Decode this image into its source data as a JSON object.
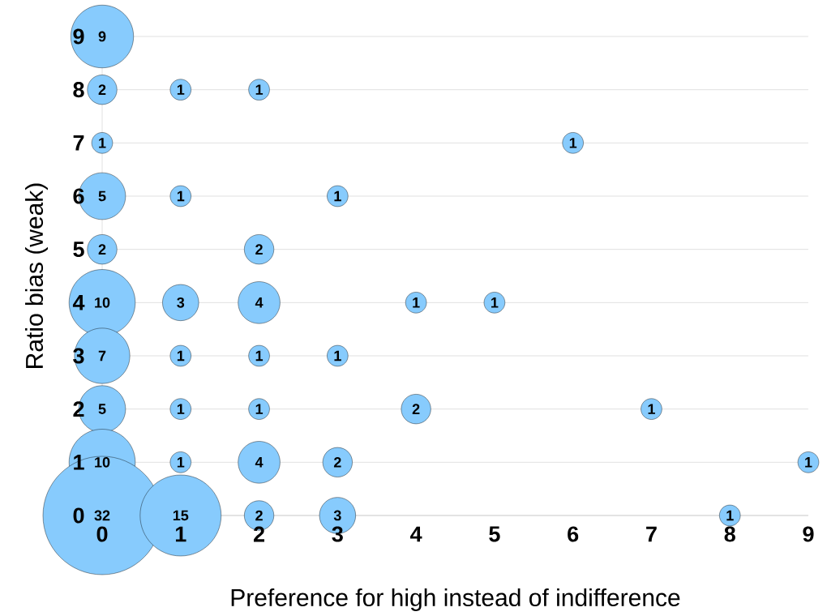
{
  "chart_data": {
    "type": "bubble",
    "xlabel": "Preference for high instead of indifference",
    "ylabel": "Ratio bias (weak)",
    "x": [
      0,
      0,
      1,
      2,
      0,
      6,
      0,
      1,
      3,
      0,
      2,
      0,
      1,
      2,
      4,
      5,
      0,
      1,
      2,
      3,
      0,
      1,
      2,
      4,
      7,
      0,
      1,
      2,
      3,
      9,
      0,
      1,
      2,
      3,
      8
    ],
    "values": [
      9,
      8,
      8,
      8,
      7,
      7,
      6,
      6,
      6,
      5,
      5,
      4,
      4,
      4,
      4,
      4,
      3,
      3,
      3,
      3,
      2,
      2,
      2,
      2,
      2,
      1,
      1,
      1,
      1,
      1,
      0,
      0,
      0,
      0,
      0
    ],
    "sizes": [
      9,
      2,
      1,
      1,
      1,
      1,
      5,
      1,
      1,
      2,
      2,
      10,
      3,
      4,
      1,
      1,
      7,
      1,
      1,
      1,
      5,
      1,
      1,
      2,
      1,
      10,
      1,
      4,
      2,
      1,
      32,
      15,
      2,
      3,
      1
    ],
    "value_labels": [
      "9",
      "2",
      "1",
      "1",
      "1",
      "1",
      "5",
      "1",
      "1",
      "2",
      "2",
      "10",
      "3",
      "4",
      "1",
      "1",
      "7",
      "1",
      "1",
      "1",
      "5",
      "1",
      "1",
      "2",
      "1",
      "10",
      "1",
      "4",
      "2",
      "1",
      "32",
      "15",
      "2",
      "3",
      "1"
    ],
    "color": "#87cbfd",
    "xlim": [
      0,
      9
    ],
    "ylim": [
      0,
      9
    ],
    "xticks": [
      0,
      1,
      2,
      3,
      4,
      5,
      6,
      7,
      8,
      9
    ],
    "yticks": [
      0,
      1,
      2,
      3,
      4,
      5,
      6,
      7,
      8,
      9
    ],
    "grid": "y"
  }
}
